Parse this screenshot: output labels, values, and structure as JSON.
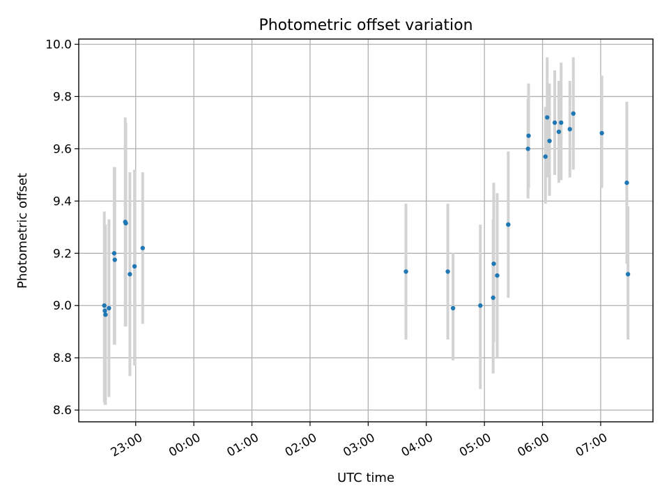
{
  "chart_data": {
    "type": "scatter",
    "title": "Photometric offset variation",
    "xlabel": "UTC time",
    "ylabel": "Photometric offset",
    "x_unit": "hours (UTC, from 00:00 of first day)",
    "xlim": [
      -1.98,
      7.9
    ],
    "ylim": [
      8.555,
      10.02
    ],
    "xticks": [
      {
        "value": -1.0,
        "label": "23:00"
      },
      {
        "value": 0.0,
        "label": "00:00"
      },
      {
        "value": 1.0,
        "label": "01:00"
      },
      {
        "value": 2.0,
        "label": "02:00"
      },
      {
        "value": 3.0,
        "label": "03:00"
      },
      {
        "value": 4.0,
        "label": "04:00"
      },
      {
        "value": 5.0,
        "label": "05:00"
      },
      {
        "value": 6.0,
        "label": "06:00"
      },
      {
        "value": 7.0,
        "label": "07:00"
      }
    ],
    "yticks": [
      {
        "value": 8.6,
        "label": "8.6"
      },
      {
        "value": 8.8,
        "label": "8.8"
      },
      {
        "value": 9.0,
        "label": "9.0"
      },
      {
        "value": 9.2,
        "label": "9.2"
      },
      {
        "value": 9.4,
        "label": "9.4"
      },
      {
        "value": 9.6,
        "label": "9.6"
      },
      {
        "value": 9.8,
        "label": "9.8"
      },
      {
        "value": 10.0,
        "label": "10.0"
      }
    ],
    "grid": true,
    "point_color": "#1f77b4",
    "errorbar_color": "#d3d3d3",
    "series": [
      {
        "points": [
          {
            "x": -1.54,
            "y": 9.0,
            "ylo": 8.63,
            "yhi": 9.36
          },
          {
            "x": -1.53,
            "y": 8.98,
            "ylo": 8.62,
            "yhi": 9.31
          },
          {
            "x": -1.52,
            "y": 8.965,
            "ylo": 8.62,
            "yhi": 9.31
          },
          {
            "x": -1.46,
            "y": 8.99,
            "ylo": 8.65,
            "yhi": 9.33
          },
          {
            "x": -1.37,
            "y": 9.2,
            "ylo": 8.85,
            "yhi": 9.53
          },
          {
            "x": -1.36,
            "y": 9.175,
            "ylo": 8.85,
            "yhi": 9.53
          },
          {
            "x": -1.18,
            "y": 9.32,
            "ylo": 8.92,
            "yhi": 9.72
          },
          {
            "x": -1.17,
            "y": 9.315,
            "ylo": 8.92,
            "yhi": 9.7
          },
          {
            "x": -1.1,
            "y": 9.12,
            "ylo": 8.73,
            "yhi": 9.51
          },
          {
            "x": -1.02,
            "y": 9.15,
            "ylo": 8.77,
            "yhi": 9.52
          },
          {
            "x": -0.88,
            "y": 9.22,
            "ylo": 8.93,
            "yhi": 9.51
          },
          {
            "x": 3.65,
            "y": 9.13,
            "ylo": 8.87,
            "yhi": 9.39
          },
          {
            "x": 4.37,
            "y": 9.13,
            "ylo": 8.87,
            "yhi": 9.39
          },
          {
            "x": 4.46,
            "y": 8.99,
            "ylo": 8.79,
            "yhi": 9.2
          },
          {
            "x": 4.93,
            "y": 9.0,
            "ylo": 8.68,
            "yhi": 9.31
          },
          {
            "x": 5.15,
            "y": 9.03,
            "ylo": 8.74,
            "yhi": 9.33
          },
          {
            "x": 5.16,
            "y": 9.16,
            "ylo": 8.86,
            "yhi": 9.47
          },
          {
            "x": 5.22,
            "y": 9.115,
            "ylo": 8.8,
            "yhi": 9.43
          },
          {
            "x": 5.41,
            "y": 9.31,
            "ylo": 9.03,
            "yhi": 9.59
          },
          {
            "x": 5.75,
            "y": 9.6,
            "ylo": 9.41,
            "yhi": 9.79
          },
          {
            "x": 5.76,
            "y": 9.65,
            "ylo": 9.45,
            "yhi": 9.85
          },
          {
            "x": 6.05,
            "y": 9.57,
            "ylo": 9.39,
            "yhi": 9.76
          },
          {
            "x": 6.08,
            "y": 9.72,
            "ylo": 9.49,
            "yhi": 9.95
          },
          {
            "x": 6.12,
            "y": 9.63,
            "ylo": 9.42,
            "yhi": 9.85
          },
          {
            "x": 6.21,
            "y": 9.7,
            "ylo": 9.5,
            "yhi": 9.9
          },
          {
            "x": 6.28,
            "y": 9.665,
            "ylo": 9.47,
            "yhi": 9.86
          },
          {
            "x": 6.32,
            "y": 9.7,
            "ylo": 9.48,
            "yhi": 9.93
          },
          {
            "x": 6.47,
            "y": 9.675,
            "ylo": 9.49,
            "yhi": 9.86
          },
          {
            "x": 6.53,
            "y": 9.735,
            "ylo": 9.52,
            "yhi": 9.95
          },
          {
            "x": 7.02,
            "y": 9.66,
            "ylo": 9.45,
            "yhi": 9.88
          },
          {
            "x": 7.45,
            "y": 9.47,
            "ylo": 9.16,
            "yhi": 9.78
          },
          {
            "x": 7.47,
            "y": 9.12,
            "ylo": 8.87,
            "yhi": 9.38
          }
        ]
      }
    ]
  }
}
